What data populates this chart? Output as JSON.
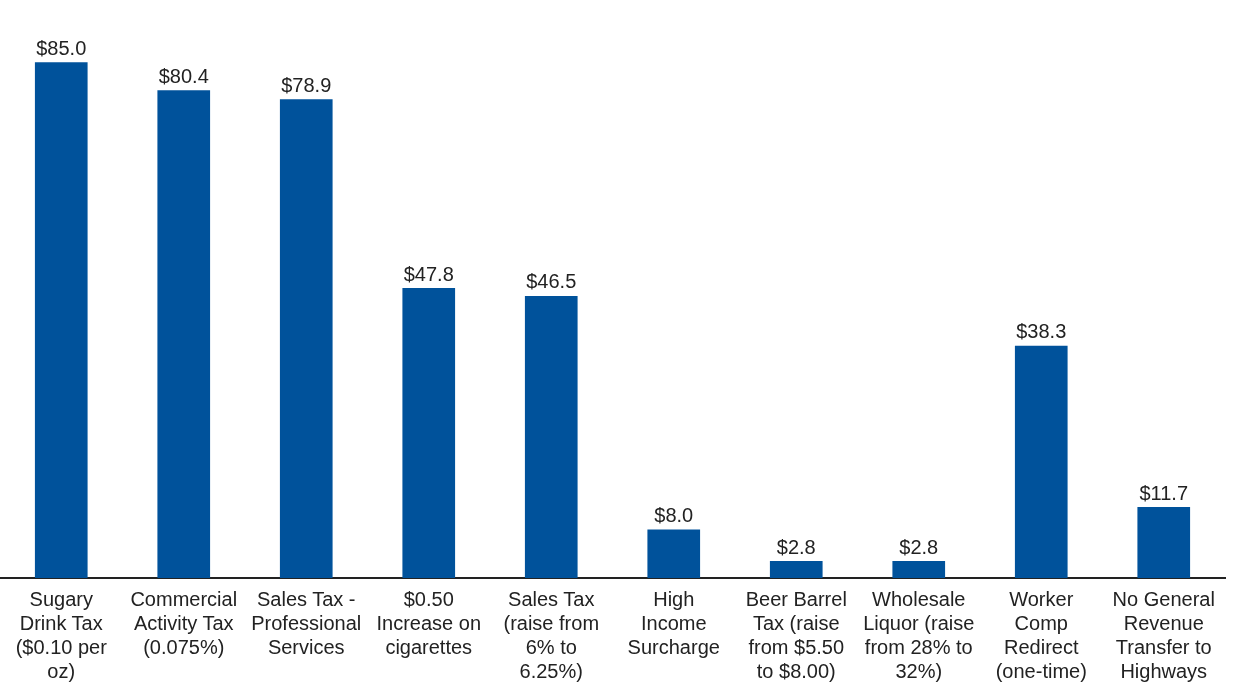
{
  "chart_data": {
    "type": "bar",
    "tick_labels": "x",
    "categories": [
      "Sugary Drink Tax ($0.10 per oz)",
      "Commercial Activity Tax (0.075%)",
      "Sales Tax - Professional Services",
      "$0.50 Increase on cigarettes",
      "Sales Tax (raise from 6% to 6.25%)",
      "High Income Surcharge",
      "Beer Barrel Tax (raise from $5.50 to $8.00)",
      "Wholesale Liquor (raise from 28% to 32%)",
      "Worker Comp Redirect (one-time)",
      "No General Revenue Transfer to Highways"
    ],
    "values": [
      85.0,
      80.4,
      78.9,
      47.8,
      46.5,
      8.0,
      2.8,
      2.8,
      38.3,
      11.7
    ],
    "value_labels": [
      "$85.0",
      "$80.4",
      "$78.9",
      "$47.8",
      "$46.5",
      "$8.0",
      "$2.8",
      "$2.8",
      "$38.3",
      "$11.7"
    ],
    "color": "#00529b",
    "grid": false,
    "legend": false
  }
}
